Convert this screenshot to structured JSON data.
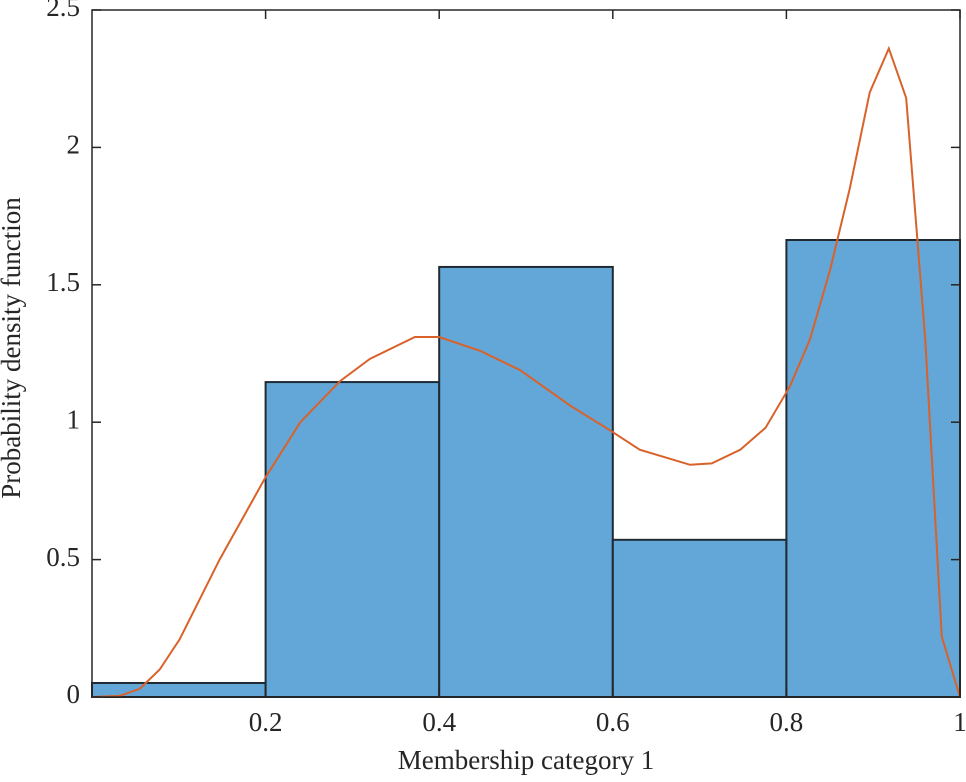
{
  "chart_data": {
    "type": "histogram",
    "xlabel": "Membership category 1",
    "ylabel": "Probability density function",
    "bins": [
      0,
      0.2,
      0.4,
      0.6,
      0.8,
      1
    ],
    "values": [
      0.051,
      1.146,
      1.565,
      0.572,
      1.663
    ],
    "color": "#63a7d8",
    "edgecolor": "#1f2a33",
    "line": {
      "color": "#d9622b",
      "x": [
        0,
        0.032,
        0.055,
        0.078,
        0.101,
        0.147,
        0.2,
        0.24,
        0.286,
        0.32,
        0.372,
        0.4,
        0.447,
        0.493,
        0.551,
        0.597,
        0.631,
        0.689,
        0.714,
        0.747,
        0.776,
        0.804,
        0.827,
        0.85,
        0.873,
        0.896,
        0.918,
        0.938,
        0.96,
        0.979,
        1
      ],
      "values": [
        0,
        0.004,
        0.03,
        0.1,
        0.21,
        0.5,
        0.8,
        1.0,
        1.15,
        1.23,
        1.31,
        1.31,
        1.26,
        1.19,
        1.06,
        0.97,
        0.9,
        0.845,
        0.85,
        0.9,
        0.98,
        1.13,
        1.3,
        1.55,
        1.85,
        2.2,
        2.36,
        2.18,
        1.3,
        0.22,
        0
      ]
    },
    "xlim": [
      0,
      1
    ],
    "xticks": [
      0.2,
      0.4,
      0.6,
      0.8,
      1
    ],
    "ylim": [
      0,
      2.5
    ],
    "yticks": [
      0,
      0.5,
      1,
      1.5,
      2,
      2.5
    ],
    "box": true
  }
}
